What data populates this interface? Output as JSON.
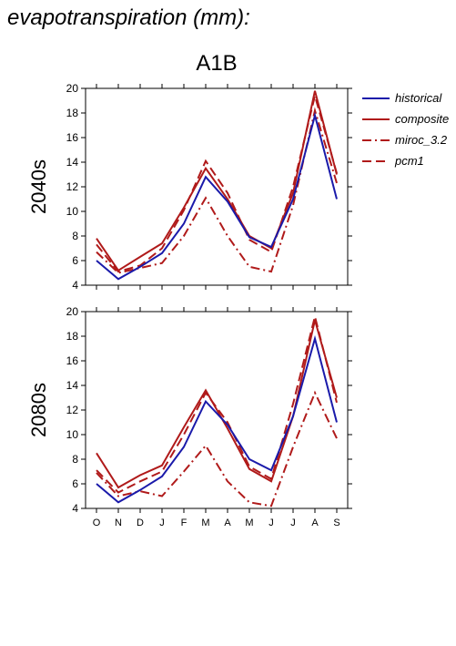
{
  "header": {
    "title": "evapotranspiration (mm):",
    "scenario": "A1B"
  },
  "legend": [
    {
      "name": "historical",
      "color": "#1a1aaa",
      "dash": ""
    },
    {
      "name": "composite",
      "color": "#b01a1a",
      "dash": ""
    },
    {
      "name": "miroc_3.2",
      "color": "#b01a1a",
      "dash": "10 4 2 4"
    },
    {
      "name": "pcm1",
      "color": "#b01a1a",
      "dash": "10 5"
    }
  ],
  "chart_data": [
    {
      "type": "line",
      "ylabel": "2040s",
      "categories": [
        "O",
        "N",
        "D",
        "J",
        "F",
        "M",
        "A",
        "M",
        "J",
        "J",
        "A",
        "S"
      ],
      "ylim": [
        4,
        20
      ],
      "yticks": [
        4,
        6,
        8,
        10,
        12,
        14,
        16,
        18,
        20
      ],
      "series": [
        {
          "name": "historical",
          "values": [
            6.0,
            4.5,
            5.5,
            6.6,
            9.0,
            12.8,
            10.8,
            7.9,
            7.1,
            11.0,
            17.8,
            11.0
          ]
        },
        {
          "name": "composite",
          "values": [
            7.8,
            5.2,
            6.3,
            7.4,
            10.3,
            13.5,
            11.0,
            8.0,
            7.0,
            11.5,
            19.8,
            13.0
          ]
        },
        {
          "name": "miroc_3.2",
          "values": [
            6.7,
            5.0,
            5.4,
            5.8,
            8.0,
            11.1,
            8.0,
            5.5,
            5.1,
            10.5,
            18.2,
            12.3
          ]
        },
        {
          "name": "pcm1",
          "values": [
            7.3,
            5.1,
            5.6,
            7.0,
            10.1,
            14.1,
            11.5,
            7.7,
            6.7,
            12.0,
            19.4,
            13.1
          ]
        }
      ]
    },
    {
      "type": "line",
      "ylabel": "2080s",
      "categories": [
        "O",
        "N",
        "D",
        "J",
        "F",
        "M",
        "A",
        "M",
        "J",
        "J",
        "A",
        "S"
      ],
      "ylim": [
        4,
        20
      ],
      "yticks": [
        4,
        6,
        8,
        10,
        12,
        14,
        16,
        18,
        20
      ],
      "series": [
        {
          "name": "historical",
          "values": [
            6.0,
            4.5,
            5.5,
            6.6,
            9.0,
            12.7,
            10.8,
            8.0,
            7.1,
            11.5,
            17.8,
            11.0
          ]
        },
        {
          "name": "composite",
          "values": [
            8.5,
            5.7,
            6.7,
            7.5,
            10.6,
            13.6,
            10.5,
            7.2,
            6.2,
            11.5,
            19.3,
            13.0
          ]
        },
        {
          "name": "miroc_3.2",
          "values": [
            6.9,
            5.0,
            5.4,
            5.0,
            7.0,
            9.1,
            6.2,
            4.5,
            4.2,
            9.0,
            13.4,
            9.7
          ]
        },
        {
          "name": "pcm1",
          "values": [
            7.1,
            5.3,
            6.2,
            7.0,
            10.0,
            13.4,
            11.0,
            7.4,
            6.4,
            12.5,
            19.6,
            12.6
          ]
        }
      ]
    }
  ]
}
